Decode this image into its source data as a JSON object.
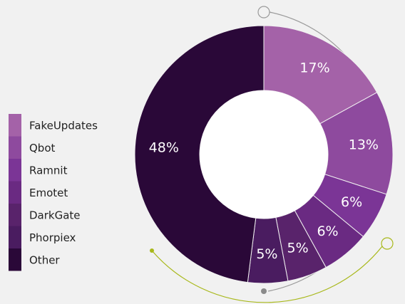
{
  "chart_data": {
    "type": "donut",
    "categories": [
      "FakeUpdates",
      "Qbot",
      "Ramnit",
      "Emotet",
      "DarkGate",
      "Phorpiex",
      "Other"
    ],
    "values": [
      17,
      13,
      6,
      6,
      5,
      5,
      48
    ],
    "value_labels": [
      "17%",
      "13%",
      "6%",
      "6%",
      "5%",
      "5%",
      "48%"
    ],
    "colors": [
      "#a462a8",
      "#8e4a9e",
      "#7b3596",
      "#6a2a82",
      "#59236b",
      "#4a1c60",
      "#2a0838"
    ],
    "legend": "left"
  }
}
